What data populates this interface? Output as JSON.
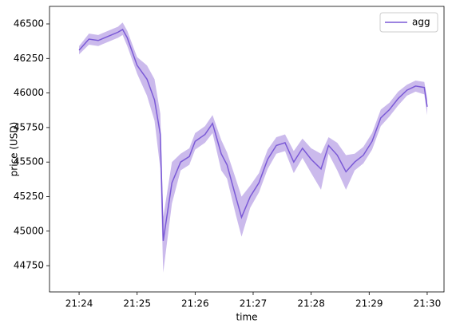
{
  "chart_data": {
    "type": "line",
    "xlabel": "time",
    "ylabel": "price (USD)",
    "x": [
      24.0,
      24.17,
      24.33,
      24.5,
      24.67,
      24.75,
      24.83,
      25.0,
      25.17,
      25.3,
      25.4,
      25.45,
      25.6,
      25.75,
      25.9,
      26.0,
      26.17,
      26.3,
      26.45,
      26.55,
      26.7,
      26.8,
      26.95,
      27.1,
      27.25,
      27.4,
      27.55,
      27.7,
      27.85,
      28.0,
      28.17,
      28.3,
      28.45,
      28.6,
      28.75,
      28.9,
      29.05,
      29.2,
      29.35,
      29.5,
      29.65,
      29.8,
      29.95,
      30.0
    ],
    "series": [
      {
        "name": "agg",
        "color": "#7b5ad6",
        "band_color": "#b9a3e6",
        "values": [
          46310,
          46390,
          46380,
          46410,
          46440,
          46460,
          46400,
          46200,
          46100,
          45950,
          45700,
          44930,
          45350,
          45500,
          45540,
          45650,
          45700,
          45780,
          45560,
          45480,
          45250,
          45100,
          45250,
          45350,
          45520,
          45620,
          45640,
          45500,
          45600,
          45520,
          45450,
          45620,
          45550,
          45430,
          45500,
          45550,
          45650,
          45820,
          45880,
          45960,
          46020,
          46050,
          46040,
          45900
        ],
        "low": [
          46280,
          46350,
          46340,
          46370,
          46400,
          46420,
          46340,
          46140,
          45980,
          45800,
          45450,
          44700,
          45200,
          45440,
          45480,
          45590,
          45640,
          45710,
          45440,
          45380,
          45120,
          44960,
          45170,
          45280,
          45450,
          45560,
          45580,
          45420,
          45530,
          45420,
          45300,
          45560,
          45440,
          45300,
          45440,
          45490,
          45590,
          45760,
          45830,
          45910,
          45980,
          46010,
          45990,
          45840
        ],
        "high": [
          46340,
          46430,
          46420,
          46450,
          46480,
          46510,
          46450,
          46260,
          46200,
          46100,
          45850,
          45100,
          45500,
          45560,
          45600,
          45710,
          45760,
          45840,
          45660,
          45570,
          45380,
          45250,
          45330,
          45420,
          45590,
          45680,
          45700,
          45580,
          45670,
          45600,
          45560,
          45680,
          45640,
          45550,
          45560,
          45610,
          45710,
          45880,
          45930,
          46010,
          46060,
          46090,
          46080,
          45960
        ]
      }
    ],
    "xlim": [
      23.49,
      30.29
    ],
    "xticks": [
      {
        "value": 24,
        "label": "21:24"
      },
      {
        "value": 25,
        "label": "21:25"
      },
      {
        "value": 26,
        "label": "21:26"
      },
      {
        "value": 27,
        "label": "21:27"
      },
      {
        "value": 28,
        "label": "21:28"
      },
      {
        "value": 29,
        "label": "21:29"
      },
      {
        "value": 30,
        "label": "21:30"
      }
    ],
    "ylim": [
      44560,
      46627
    ],
    "yticks": [
      44750,
      45000,
      45250,
      45500,
      45750,
      46000,
      46250,
      46500
    ],
    "legend": "upper right",
    "grid": false
  }
}
